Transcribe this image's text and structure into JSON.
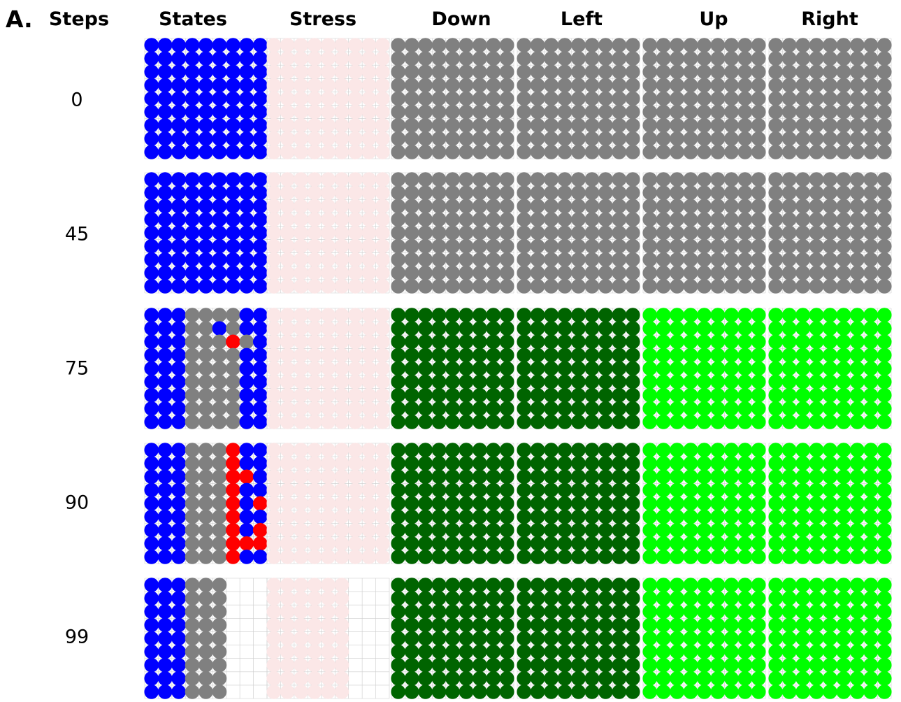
{
  "panel_label": "A.",
  "header": {
    "steps": "Steps",
    "columns": [
      "States",
      "Stress",
      "Down",
      "Left",
      "Up",
      "Right"
    ]
  },
  "colors": {
    "blue": "#0000ff",
    "gray": "#808080",
    "red": "#ff0000",
    "pink": "#fbe7e7",
    "dark_green": "#006400",
    "light_green": "#00ff00",
    "grid_line": "#cccccc"
  },
  "legend_codes": {
    "B": "blue",
    "G": "gray",
    "R": "red",
    "P": "pink",
    "D": "dark_green",
    "L": "light_green",
    ".": "empty"
  },
  "rows": [
    {
      "step": "0",
      "states": [
        "BBBBBBBBB",
        "BBBBBBBBB",
        "BBBBBBBBB",
        "BBBBBBBBB",
        "BBBBBBBBB",
        "BBBBBBBBB",
        "BBBBBBBBB",
        "BBBBBBBBB",
        "BBBBBBBBB"
      ],
      "stress": [
        "PPPPPPPPP",
        "PPPPPPPPP",
        "PPPPPPPPP",
        "PPPPPPPPP",
        "PPPPPPPPP",
        "PPPPPPPPP",
        "PPPPPPPPP",
        "PPPPPPPPP",
        "PPPPPPPPP"
      ],
      "down": "G",
      "left": "G",
      "up": "G",
      "right": "G"
    },
    {
      "step": "45",
      "states": [
        "BBBBBBBBB",
        "BBBBBBBBB",
        "BBBBBBBBB",
        "BBBBBBBBB",
        "BBBBBBBBB",
        "BBBBBBBBB",
        "BBBBBBBBB",
        "BBBBBBBBB",
        "BBBBBBBBB"
      ],
      "stress": [
        "PPPPPPPPP",
        "PPPPPPPPP",
        "PPPPPPPPP",
        "PPPPPPPPP",
        "PPPPPPPPP",
        "PPPPPPPPP",
        "PPPPPPPPP",
        "PPPPPPPPP",
        "PPPPPPPPP"
      ],
      "down": "G",
      "left": "G",
      "up": "G",
      "right": "G"
    },
    {
      "step": "75",
      "states": [
        "BBBGGGGBB",
        "BBBGGBGBB",
        "BBBGGGRGB",
        "BBBGGGGBB",
        "BBBGGGGBB",
        "BBBGGGGBB",
        "BBBGGGGBB",
        "BBBGGGGBB",
        "BBBGGGGBB"
      ],
      "stress": [
        "PPPPPPPPP",
        "PPPPPPPPP",
        "PPPPPPPPP",
        "PPPPPPPPP",
        "PPPPPPPPP",
        "PPPPPPPPP",
        "PPPPPPPPP",
        "PPPPPPPPP",
        "PPPPPPPPP"
      ],
      "down": "D",
      "left": "D",
      "up": "L",
      "right": "L"
    },
    {
      "step": "90",
      "states": [
        "BBBGGGRBB",
        "BBBGGGRBB",
        "BBBGGGRRB",
        "BBBGGGRBB",
        "BBBGGGRBR",
        "BBBGGGRBB",
        "BBBGGGRBR",
        "BBBGGGRRR",
        "BBBGGGRBB"
      ],
      "stress": [
        "PPPPPPPPP",
        "PPPPPPPPP",
        "PPPPPPPPP",
        "PPPPPPPPP",
        "PPPPPPPPP",
        "PPPPPPPPP",
        "PPPPPPPPP",
        "PPPPPPPPP",
        "PPPPPPPPP"
      ],
      "down": "D",
      "left": "D",
      "up": "L",
      "right": "L"
    },
    {
      "step": "99",
      "states": [
        "BBBGGG...",
        "BBBGGG...",
        "BBBGGG...",
        "BBBGGG...",
        "BBBGGG...",
        "BBBGGG...",
        "BBBGGG...",
        "BBBGGG...",
        "BBBGGG..."
      ],
      "stress": [
        "PPPPPP...",
        "PPPPPP...",
        "PPPPPP...",
        "PPPPPP...",
        "PPPPPP...",
        "PPPPPP...",
        "PPPPPP...",
        "PPPPPP...",
        "PPPPPP..."
      ],
      "down": "D",
      "left": "D",
      "up": "L",
      "right": "L"
    }
  ]
}
